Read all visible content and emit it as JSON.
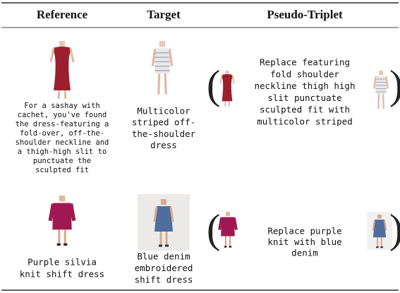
{
  "header": {
    "columns": [
      "Reference",
      "Target",
      "Pseudo-Triplet"
    ]
  },
  "rows": [
    {
      "reference": [
        "For a sashay with",
        "cachet, you've found",
        "the dress-featuring a",
        "fold-over, off-the-",
        "shoulder neckline and",
        "a thigh-high slit to",
        "punctuate the",
        "sculpted fit"
      ],
      "target": [
        "Multicolor",
        "striped off-",
        "the-shoulder",
        "dress"
      ],
      "pseudo_triplet": [
        "Replace featuring",
        "fold shoulder",
        "neckline thigh high",
        "slit punctuate",
        "sculpted fit with",
        "multicolor striped"
      ]
    },
    {
      "reference": [
        "Purple silvia",
        "knit shift dress"
      ],
      "target": [
        "Blue denim",
        "embroidered",
        "shift dress"
      ],
      "pseudo_triplet": [
        "Replace purple",
        "knit with blue",
        "denim"
      ]
    }
  ]
}
